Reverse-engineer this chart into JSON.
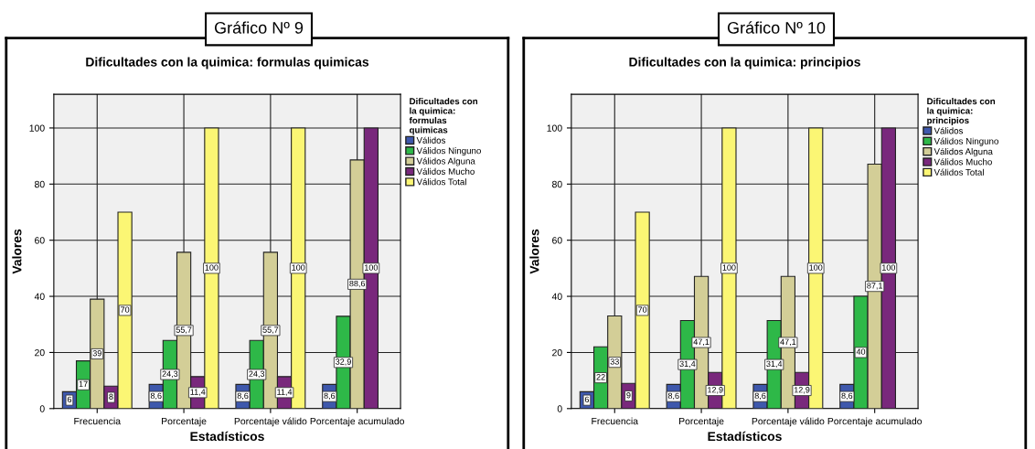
{
  "chart_data": [
    {
      "type": "bar",
      "title": "Dificultades con la quimica: formulas quimicas",
      "xlabel": "Estadísticos",
      "ylabel": "Valores",
      "annotations": [
        "Gráfico Nº 9"
      ],
      "categories": [
        "Frecuencia",
        "Porcentaje",
        "Porcentaje válido",
        "Porcentaje acumulado"
      ],
      "legend_title": "Dificultades con\nla quimica:\nformulas\nquimicas",
      "legend": "right",
      "grid": true,
      "ylim": [
        0,
        112
      ],
      "yticks": [
        0,
        20,
        40,
        60,
        80,
        100
      ],
      "series": [
        {
          "name": "Válidos",
          "color": "#3e58ac",
          "values": [
            6,
            8.6,
            8.6,
            8.6
          ],
          "value_labels": [
            "6",
            "8,6",
            "8,6",
            "8,6"
          ]
        },
        {
          "name": "Válidos Ninguno",
          "color": "#2eb848",
          "values": [
            17,
            24.3,
            24.3,
            32.9
          ],
          "value_labels": [
            "17",
            "24,3",
            "24,3",
            "32,9"
          ]
        },
        {
          "name": "Válidos Alguna",
          "color": "#d3ce97",
          "values": [
            39,
            55.7,
            55.7,
            88.6
          ],
          "value_labels": [
            "39",
            "55,7",
            "55,7",
            "88,6"
          ]
        },
        {
          "name": "Válidos Mucho",
          "color": "#79287c",
          "values": [
            8,
            11.4,
            11.4,
            100
          ],
          "value_labels": [
            "8",
            "11,4",
            "11,4",
            "100"
          ]
        },
        {
          "name": "Válidos Total",
          "color": "#fbf674",
          "values": [
            70,
            100,
            100,
            null
          ],
          "value_labels": [
            "70",
            "100",
            "100",
            null
          ]
        }
      ]
    },
    {
      "type": "bar",
      "title": "Dificultades con la quimica: principios",
      "xlabel": "Estadísticos",
      "ylabel": "Valores",
      "annotations": [
        "Gráfico Nº 10"
      ],
      "categories": [
        "Frecuencia",
        "Porcentaje",
        "Porcentaje válido",
        "Porcentaje acumulado"
      ],
      "legend_title": "Dificultades con\nla quimica:\nprincipios",
      "legend": "right",
      "grid": true,
      "ylim": [
        0,
        112
      ],
      "yticks": [
        0,
        20,
        40,
        60,
        80,
        100
      ],
      "series": [
        {
          "name": "Válidos",
          "color": "#3e58ac",
          "values": [
            6,
            8.6,
            8.6,
            8.6
          ],
          "value_labels": [
            "6",
            "8,6",
            "8,6",
            "8,6"
          ]
        },
        {
          "name": "Válidos Ninguno",
          "color": "#2eb848",
          "values": [
            22,
            31.4,
            31.4,
            40
          ],
          "value_labels": [
            "22",
            "31,4",
            "31,4",
            "40"
          ]
        },
        {
          "name": "Válidos Alguna",
          "color": "#d3ce97",
          "values": [
            33,
            47.1,
            47.1,
            87.1
          ],
          "value_labels": [
            "33",
            "47,1",
            "47,1",
            "87,1"
          ]
        },
        {
          "name": "Válidos Mucho",
          "color": "#79287c",
          "values": [
            9,
            12.9,
            12.9,
            100
          ],
          "value_labels": [
            "9",
            "12,9",
            "12,9",
            "100"
          ]
        },
        {
          "name": "Válidos Total",
          "color": "#fbf674",
          "values": [
            70,
            100,
            100,
            null
          ],
          "value_labels": [
            "70",
            "100",
            "100",
            null
          ]
        }
      ]
    }
  ]
}
